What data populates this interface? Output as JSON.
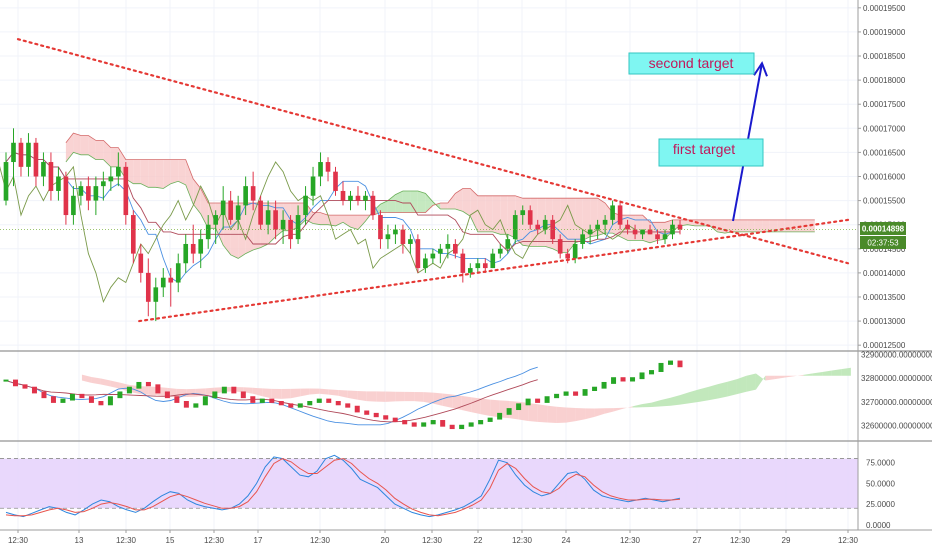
{
  "chart_data": [
    {
      "type": "candlestick",
      "title": "",
      "price_axis": {
        "ticks": [
          "0.00019500",
          "0.00019000",
          "0.00018500",
          "0.00018000",
          "0.00017500",
          "0.00017000",
          "0.00016500",
          "0.00016000",
          "0.00015500",
          "0.00015000",
          "0.00014500",
          "0.00014000",
          "0.00013500",
          "0.00013000",
          "0.00012500"
        ],
        "tick_values": [
          0.000195,
          0.00019,
          0.000185,
          0.00018,
          0.000175,
          0.00017,
          0.000165,
          0.00016,
          0.000155,
          0.00015,
          0.000145,
          0.00014,
          0.000135,
          0.00013,
          0.000125
        ],
        "ylim": [
          0.000124,
          0.000196
        ]
      },
      "last_price_label": "0.00014898",
      "countdown_label": "02:37:53",
      "last_price": 0.00014898,
      "annotations": [
        {
          "text": "second target",
          "target_price": 0.0001835
        },
        {
          "text": "first target",
          "target_price": 0.000164
        }
      ],
      "candles": [
        [
          0.000155,
          0.000165,
          0.000154,
          0.000163
        ],
        [
          0.000163,
          0.00017,
          0.000158,
          0.000167
        ],
        [
          0.000167,
          0.000168,
          0.00016,
          0.000162
        ],
        [
          0.000162,
          0.000169,
          0.00016,
          0.000167
        ],
        [
          0.000167,
          0.000168,
          0.000158,
          0.00016
        ],
        [
          0.00016,
          0.000165,
          0.000158,
          0.000163
        ],
        [
          0.000163,
          0.000165,
          0.000155,
          0.000157
        ],
        [
          0.000157,
          0.000162,
          0.000155,
          0.00016
        ],
        [
          0.00016,
          0.000161,
          0.00015,
          0.000152
        ],
        [
          0.000152,
          0.000158,
          0.00015,
          0.000156
        ],
        [
          0.000156,
          0.000159,
          0.000154,
          0.000158
        ],
        [
          0.000158,
          0.00016,
          0.000153,
          0.000155
        ],
        [
          0.000155,
          0.00016,
          0.000152,
          0.000158
        ],
        [
          0.000158,
          0.000161,
          0.000155,
          0.000159
        ],
        [
          0.000159,
          0.000162,
          0.000157,
          0.00016
        ],
        [
          0.00016,
          0.000165,
          0.000158,
          0.000162
        ],
        [
          0.000162,
          0.000163,
          0.00015,
          0.000152
        ],
        [
          0.000152,
          0.000153,
          0.000142,
          0.000144
        ],
        [
          0.000144,
          0.000146,
          0.000138,
          0.00014
        ],
        [
          0.00014,
          0.000143,
          0.000131,
          0.000134
        ],
        [
          0.000134,
          0.000139,
          0.00013,
          0.000137
        ],
        [
          0.000137,
          0.000141,
          0.000135,
          0.000139
        ],
        [
          0.000139,
          0.000141,
          0.000133,
          0.000138
        ],
        [
          0.000138,
          0.000144,
          0.000136,
          0.000142
        ],
        [
          0.000142,
          0.000148,
          0.00014,
          0.000146
        ],
        [
          0.000146,
          0.00015,
          0.000142,
          0.000144
        ],
        [
          0.000144,
          0.000149,
          0.000141,
          0.000147
        ],
        [
          0.000147,
          0.000152,
          0.000145,
          0.00015
        ],
        [
          0.00015,
          0.000153,
          0.000146,
          0.000152
        ],
        [
          0.000152,
          0.000158,
          0.000149,
          0.000155
        ],
        [
          0.000155,
          0.000157,
          0.00015,
          0.000151
        ],
        [
          0.000151,
          0.000156,
          0.000149,
          0.000154
        ],
        [
          0.000154,
          0.00016,
          0.000152,
          0.000158
        ],
        [
          0.000158,
          0.000161,
          0.000153,
          0.000155
        ],
        [
          0.000155,
          0.000156,
          0.000149,
          0.00015
        ],
        [
          0.00015,
          0.000155,
          0.000148,
          0.000153
        ],
        [
          0.000153,
          0.000155,
          0.000147,
          0.000149
        ],
        [
          0.000149,
          0.000153,
          0.000146,
          0.000151
        ],
        [
          0.000151,
          0.000152,
          0.000145,
          0.000147
        ],
        [
          0.000147,
          0.000154,
          0.000146,
          0.000152
        ],
        [
          0.000152,
          0.000158,
          0.00015,
          0.000156
        ],
        [
          0.000156,
          0.000162,
          0.000154,
          0.00016
        ],
        [
          0.00016,
          0.000165,
          0.000158,
          0.000163
        ],
        [
          0.000163,
          0.000164,
          0.000159,
          0.000161
        ],
        [
          0.000161,
          0.000162,
          0.000156,
          0.000157
        ],
        [
          0.000157,
          0.000159,
          0.000154,
          0.000155
        ],
        [
          0.000155,
          0.000157,
          0.000153,
          0.000156
        ],
        [
          0.000156,
          0.000158,
          0.000154,
          0.000155
        ],
        [
          0.000155,
          0.000157,
          0.000153,
          0.000156
        ],
        [
          0.000156,
          0.000157,
          0.000151,
          0.000152
        ],
        [
          0.000152,
          0.000153,
          0.000145,
          0.000147
        ],
        [
          0.000147,
          0.00015,
          0.000145,
          0.000148
        ],
        [
          0.000148,
          0.00015,
          0.000146,
          0.000149
        ],
        [
          0.000149,
          0.00015,
          0.000144,
          0.000146
        ],
        [
          0.000146,
          0.000148,
          0.000144,
          0.000147
        ],
        [
          0.000147,
          0.000148,
          0.00014,
          0.000141
        ],
        [
          0.000141,
          0.000144,
          0.00014,
          0.000143
        ],
        [
          0.000143,
          0.000145,
          0.000142,
          0.000144
        ],
        [
          0.000144,
          0.000146,
          0.000142,
          0.000145
        ],
        [
          0.000145,
          0.000148,
          0.000143,
          0.000146
        ],
        [
          0.000146,
          0.000147,
          0.000143,
          0.000144
        ],
        [
          0.000144,
          0.000145,
          0.000138,
          0.00014
        ],
        [
          0.00014,
          0.000142,
          0.000139,
          0.000141
        ],
        [
          0.000141,
          0.000143,
          0.00014,
          0.000142
        ],
        [
          0.000142,
          0.000143,
          0.00014,
          0.000141
        ],
        [
          0.000141,
          0.000145,
          0.000141,
          0.000144
        ],
        [
          0.000144,
          0.000146,
          0.000143,
          0.000145
        ],
        [
          0.000145,
          0.000148,
          0.000144,
          0.000147
        ],
        [
          0.000147,
          0.000153,
          0.000146,
          0.000152
        ],
        [
          0.000152,
          0.000154,
          0.00015,
          0.000153
        ],
        [
          0.000153,
          0.000154,
          0.000149,
          0.00015
        ],
        [
          0.00015,
          0.000151,
          0.000148,
          0.000149
        ],
        [
          0.000149,
          0.000152,
          0.000148,
          0.000151
        ],
        [
          0.000151,
          0.000152,
          0.000146,
          0.000147
        ],
        [
          0.000147,
          0.000148,
          0.000143,
          0.000144
        ],
        [
          0.000144,
          0.000145,
          0.000142,
          0.000143
        ],
        [
          0.000143,
          0.000147,
          0.000142,
          0.000146
        ],
        [
          0.000146,
          0.000149,
          0.000145,
          0.000148
        ],
        [
          0.000148,
          0.00015,
          0.000146,
          0.000149
        ],
        [
          0.000149,
          0.000151,
          0.000147,
          0.00015
        ],
        [
          0.00015,
          0.000152,
          0.000148,
          0.000151
        ],
        [
          0.000151,
          0.000155,
          0.00015,
          0.000154
        ],
        [
          0.000154,
          0.000155,
          0.000149,
          0.00015
        ],
        [
          0.00015,
          0.000151,
          0.000148,
          0.000149
        ],
        [
          0.000149,
          0.00015,
          0.000147,
          0.000148
        ],
        [
          0.000148,
          0.000149,
          0.000147,
          0.000149
        ],
        [
          0.000149,
          0.00015,
          0.000148,
          0.000148
        ],
        [
          0.000148,
          0.000149,
          0.000146,
          0.000147
        ],
        [
          0.000147,
          0.000149,
          0.000146,
          0.000148
        ],
        [
          0.000148,
          0.000151,
          0.000147,
          0.00015
        ],
        [
          0.00015,
          0.000151,
          0.000148,
          0.000149
        ]
      ],
      "time_axis": {
        "labels": [
          "12:30",
          "13",
          "12:30",
          "15",
          "12:30",
          "17",
          "12:30",
          "20",
          "12:30",
          "22",
          "12:30",
          "24",
          "12:30",
          "27",
          "12:30",
          "29",
          "12:30"
        ],
        "x": [
          0,
          1,
          2,
          3,
          4,
          5,
          6,
          7,
          8,
          9,
          10,
          11,
          12,
          13,
          14,
          15,
          16
        ]
      },
      "trendlines": [
        {
          "name": "",
          "from": [
            0,
            0.0001885
          ],
          "to": [
            16,
            0.000142
          ]
        },
        {
          "name": "",
          "from": [
            2.3,
            0.00013
          ],
          "to": [
            16,
            0.000151
          ]
        }
      ]
    },
    {
      "type": "candlestick",
      "title": "",
      "price_axis": {
        "ticks": [
          "32900000.00000000",
          "32800000.00000000",
          "32700000.00000000",
          "32600000.00000000"
        ],
        "tick_values": [
          32900000,
          32800000,
          32700000,
          32600000
        ],
        "ylim": [
          32540000,
          32910000
        ]
      },
      "series_values": [
        32790000,
        32770000,
        32760000,
        32740000,
        32720000,
        32700000,
        32710000,
        32730000,
        32720000,
        32700000,
        32690000,
        32720000,
        32740000,
        32760000,
        32780000,
        32770000,
        32740000,
        32720000,
        32700000,
        32680000,
        32690000,
        32720000,
        32740000,
        32760000,
        32740000,
        32720000,
        32700000,
        32710000,
        32700000,
        32690000,
        32680000,
        32690000,
        32700000,
        32710000,
        32700000,
        32690000,
        32680000,
        32660000,
        32650000,
        32640000,
        32630000,
        32620000,
        32610000,
        32600000,
        32610000,
        32620000,
        32600000,
        32590000,
        32600000,
        32610000,
        32620000,
        32630000,
        32650000,
        32670000,
        32690000,
        32710000,
        32700000,
        32720000,
        32730000,
        32740000,
        32730000,
        32750000,
        32760000,
        32780000,
        32800000,
        32790000,
        32800000,
        32820000,
        32830000,
        32860000,
        32870000,
        32850000
      ]
    },
    {
      "type": "line",
      "title": "",
      "ylabel": "",
      "value_axis": {
        "ticks": [
          "75.0000",
          "50.0000",
          "25.0000",
          "0.0000"
        ],
        "tick_values": [
          75,
          50,
          25,
          0
        ],
        "ylim": [
          -5,
          100
        ]
      },
      "band": [
        20,
        80
      ],
      "series": [
        {
          "name": "",
          "values": [
            15,
            12,
            10,
            14,
            18,
            22,
            20,
            15,
            12,
            18,
            25,
            30,
            28,
            22,
            18,
            15,
            20,
            28,
            35,
            40,
            38,
            30,
            25,
            22,
            20,
            18,
            20,
            25,
            35,
            50,
            70,
            82,
            80,
            70,
            60,
            58,
            65,
            80,
            84,
            78,
            68,
            55,
            50,
            45,
            35,
            25,
            20,
            15,
            12,
            10,
            12,
            15,
            18,
            22,
            28,
            35,
            55,
            78,
            75,
            60,
            48,
            40,
            35,
            38,
            50,
            62,
            64,
            55,
            42,
            35,
            32,
            30,
            28,
            30,
            32,
            30,
            28,
            30,
            32
          ]
        },
        {
          "name": "",
          "values": [
            12,
            11,
            11,
            12,
            15,
            18,
            20,
            18,
            15,
            16,
            20,
            25,
            27,
            25,
            22,
            18,
            18,
            22,
            28,
            34,
            37,
            34,
            30,
            26,
            23,
            20,
            20,
            22,
            28,
            40,
            58,
            74,
            80,
            76,
            68,
            62,
            62,
            70,
            78,
            80,
            74,
            64,
            56,
            50,
            42,
            32,
            25,
            19,
            15,
            12,
            11,
            13,
            15,
            19,
            24,
            30,
            44,
            66,
            74,
            68,
            56,
            46,
            40,
            38,
            44,
            55,
            61,
            58,
            48,
            40,
            35,
            32,
            30,
            30,
            31,
            31,
            30,
            30,
            31
          ]
        }
      ]
    }
  ]
}
